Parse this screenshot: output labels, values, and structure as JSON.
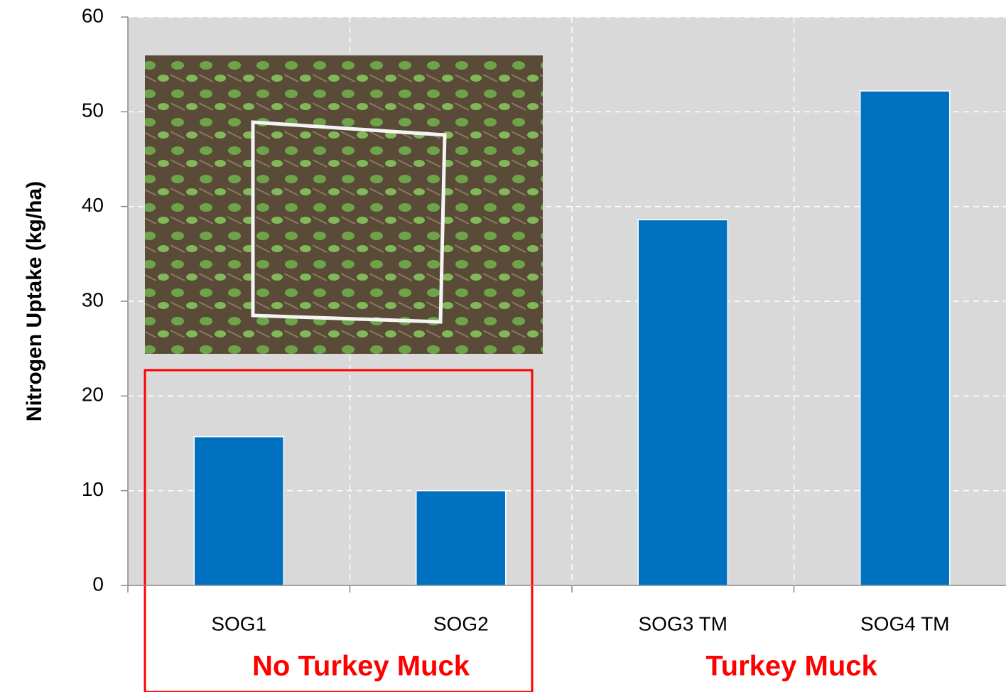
{
  "chart_data": {
    "type": "bar",
    "ylabel": "Nitrogen Uptake (kg/ha)",
    "categories": [
      "SOG1",
      "SOG2",
      "SOG3 TM",
      "SOG4 TM"
    ],
    "values": [
      15.7,
      10,
      38.6,
      52.2
    ],
    "color": "#0070c0",
    "ylim": [
      0,
      60
    ],
    "yticks": [
      0,
      10,
      20,
      30,
      40,
      50,
      60
    ],
    "grid": true,
    "annotations": [
      "No Turkey Muck",
      "Turkey Muck"
    ]
  }
}
